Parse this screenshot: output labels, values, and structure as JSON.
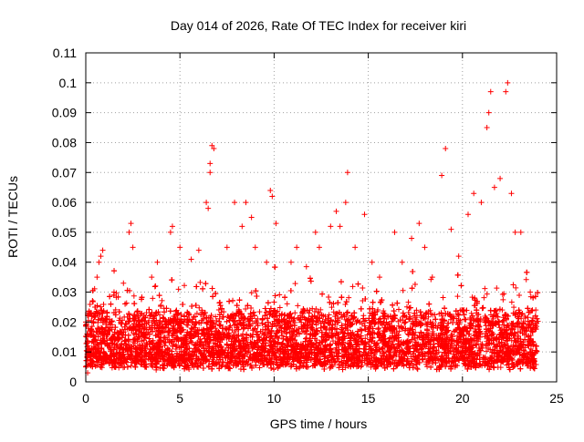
{
  "chart_data": {
    "type": "scatter",
    "title": "Day 014 of 2026, Rate Of TEC Index for receiver kiri",
    "xlabel": "GPS time / hours",
    "ylabel": "ROTI / TECUs",
    "xlim": [
      0,
      25
    ],
    "ylim": [
      0,
      0.11
    ],
    "x_ticks": [
      "0",
      "5",
      "10",
      "15",
      "20",
      "25"
    ],
    "y_ticks": [
      "0",
      "0.01",
      "0.02",
      "0.03",
      "0.04",
      "0.05",
      "0.06",
      "0.07",
      "0.08",
      "0.09",
      "0.1",
      "0.11"
    ],
    "grid": true,
    "marker": "plus",
    "color": "#ff0000",
    "series": [
      {
        "points": [
          [
            0.0,
            0.005
          ],
          [
            0.0,
            0.02
          ],
          [
            0.05,
            0.015
          ],
          [
            0.1,
            0.023
          ],
          [
            0.1,
            0.003
          ],
          [
            0.5,
            0.025
          ],
          [
            0.6,
            0.035
          ],
          [
            0.7,
            0.04
          ],
          [
            0.8,
            0.042
          ],
          [
            0.9,
            0.044
          ],
          [
            1.5,
            0.03
          ],
          [
            2.0,
            0.033
          ],
          [
            2.3,
            0.05
          ],
          [
            2.4,
            0.053
          ],
          [
            2.5,
            0.045
          ],
          [
            3.5,
            0.035
          ],
          [
            3.8,
            0.04
          ],
          [
            4.5,
            0.05
          ],
          [
            4.6,
            0.052
          ],
          [
            5.0,
            0.045
          ],
          [
            5.6,
            0.041
          ],
          [
            6.0,
            0.044
          ],
          [
            6.4,
            0.06
          ],
          [
            6.5,
            0.058
          ],
          [
            6.6,
            0.07
          ],
          [
            6.7,
            0.079
          ],
          [
            6.8,
            0.078
          ],
          [
            6.6,
            0.073
          ],
          [
            7.5,
            0.045
          ],
          [
            7.9,
            0.06
          ],
          [
            8.3,
            0.052
          ],
          [
            8.5,
            0.06
          ],
          [
            8.8,
            0.055
          ],
          [
            9.0,
            0.045
          ],
          [
            9.6,
            0.04
          ],
          [
            9.8,
            0.064
          ],
          [
            9.9,
            0.062
          ],
          [
            10.1,
            0.053
          ],
          [
            10.9,
            0.04
          ],
          [
            11.2,
            0.045
          ],
          [
            12.2,
            0.05
          ],
          [
            12.4,
            0.045
          ],
          [
            13.0,
            0.052
          ],
          [
            13.3,
            0.057
          ],
          [
            13.5,
            0.052
          ],
          [
            13.8,
            0.06
          ],
          [
            13.9,
            0.07
          ],
          [
            14.3,
            0.045
          ],
          [
            14.8,
            0.056
          ],
          [
            15.2,
            0.04
          ],
          [
            15.6,
            0.035
          ],
          [
            16.4,
            0.05
          ],
          [
            16.8,
            0.04
          ],
          [
            17.3,
            0.048
          ],
          [
            17.7,
            0.053
          ],
          [
            18.0,
            0.045
          ],
          [
            18.4,
            0.035
          ],
          [
            18.9,
            0.069
          ],
          [
            19.1,
            0.078
          ],
          [
            19.4,
            0.051
          ],
          [
            19.8,
            0.042
          ],
          [
            20.3,
            0.056
          ],
          [
            20.6,
            0.063
          ],
          [
            21.0,
            0.06
          ],
          [
            21.3,
            0.085
          ],
          [
            21.4,
            0.09
          ],
          [
            21.5,
            0.097
          ],
          [
            21.7,
            0.065
          ],
          [
            22.0,
            0.068
          ],
          [
            22.3,
            0.097
          ],
          [
            22.4,
            0.1
          ],
          [
            22.6,
            0.063
          ],
          [
            22.8,
            0.05
          ],
          [
            23.1,
            0.05
          ],
          [
            23.6,
            0.03
          ]
        ]
      }
    ]
  }
}
